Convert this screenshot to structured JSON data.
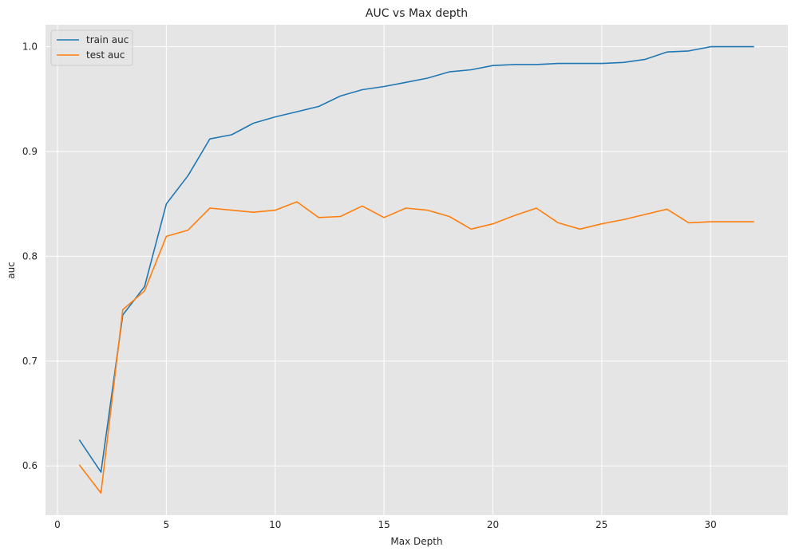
{
  "chart_data": {
    "type": "line",
    "title": "AUC vs Max depth",
    "xlabel": "Max Depth",
    "ylabel": "auc",
    "xlim": [
      -0.55,
      33.55
    ],
    "ylim": [
      0.553,
      1.021
    ],
    "x_ticks": [
      0,
      5,
      10,
      15,
      20,
      25,
      30
    ],
    "y_ticks": [
      0.6,
      0.7,
      0.8,
      0.9,
      1.0
    ],
    "x_tick_labels": [
      "0",
      "5",
      "10",
      "15",
      "20",
      "25",
      "30"
    ],
    "y_tick_labels": [
      "0.6",
      "0.7",
      "0.8",
      "0.9",
      "1.0"
    ],
    "grid": true,
    "legend_position": "top-left",
    "background_color": "#e5e5e5",
    "grid_color": "#ffffff",
    "x": [
      1,
      2,
      3,
      4,
      5,
      6,
      7,
      8,
      9,
      10,
      11,
      12,
      13,
      14,
      15,
      16,
      17,
      18,
      19,
      20,
      21,
      22,
      23,
      24,
      25,
      26,
      27,
      28,
      29,
      30,
      31,
      32
    ],
    "series": [
      {
        "name": "train auc",
        "color": "#1f77b4",
        "values": [
          0.625,
          0.594,
          0.744,
          0.771,
          0.85,
          0.877,
          0.912,
          0.916,
          0.927,
          0.933,
          0.938,
          0.943,
          0.953,
          0.959,
          0.962,
          0.966,
          0.97,
          0.976,
          0.978,
          0.982,
          0.983,
          0.983,
          0.984,
          0.984,
          0.984,
          0.985,
          0.988,
          0.995,
          0.996,
          1.0,
          1.0,
          1.0
        ]
      },
      {
        "name": "test auc",
        "color": "#ff7f0e",
        "values": [
          0.601,
          0.574,
          0.749,
          0.767,
          0.819,
          0.825,
          0.846,
          0.844,
          0.842,
          0.844,
          0.852,
          0.837,
          0.838,
          0.848,
          0.837,
          0.846,
          0.844,
          0.838,
          0.826,
          0.831,
          0.839,
          0.846,
          0.832,
          0.826,
          0.831,
          0.835,
          0.84,
          0.845,
          0.832,
          0.833,
          0.833,
          0.833
        ]
      }
    ]
  }
}
